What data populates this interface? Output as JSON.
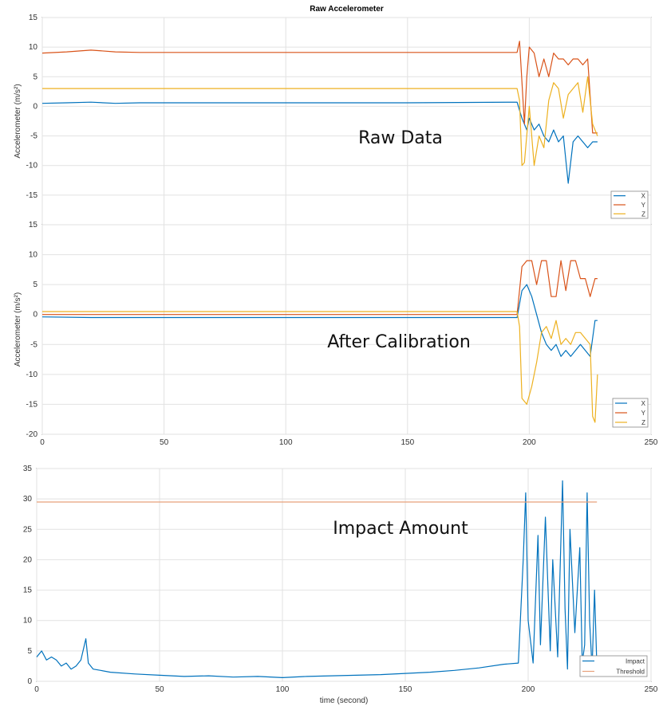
{
  "chart_data": [
    {
      "type": "line",
      "title": "Raw Accelerometer",
      "xlabel": "",
      "ylabel": "Accelerometer (m/s²)",
      "xlim": [
        0,
        250
      ],
      "ylim": [
        -20,
        15
      ],
      "yticks": [
        15,
        10,
        5,
        0,
        -5,
        -10,
        -15
      ],
      "xticks": [],
      "grid": true,
      "legend": "bottom-right",
      "annotation": "Raw Data",
      "series": [
        {
          "name": "X",
          "color": "#0072bd",
          "x": [
            0,
            10,
            20,
            30,
            40,
            60,
            100,
            150,
            195,
            197,
            199,
            200,
            202,
            204,
            206,
            208,
            210,
            212,
            214,
            216,
            218,
            220,
            222,
            224,
            226,
            228
          ],
          "y": [
            0.5,
            0.6,
            0.7,
            0.5,
            0.6,
            0.6,
            0.6,
            0.6,
            0.7,
            -2,
            -4,
            -2,
            -4,
            -3,
            -5,
            -6,
            -4,
            -6,
            -5,
            -13,
            -6,
            -5,
            -6,
            -7,
            -6,
            -6
          ]
        },
        {
          "name": "Y",
          "color": "#d95319",
          "x": [
            0,
            10,
            20,
            30,
            40,
            60,
            100,
            150,
            195,
            196,
            198,
            199,
            200,
            202,
            204,
            206,
            208,
            210,
            212,
            214,
            216,
            218,
            220,
            222,
            224,
            226,
            228
          ],
          "y": [
            9,
            9.2,
            9.5,
            9.2,
            9.1,
            9.1,
            9.1,
            9.1,
            9.1,
            11,
            -3,
            5,
            10,
            9,
            5,
            8,
            5,
            9,
            8,
            8,
            7,
            8,
            8,
            7,
            8,
            -4.5,
            -4.5
          ]
        },
        {
          "name": "Z",
          "color": "#edb120",
          "x": [
            0,
            20,
            60,
            100,
            150,
            195,
            196,
            197,
            198,
            200,
            202,
            204,
            206,
            208,
            210,
            212,
            214,
            216,
            218,
            220,
            222,
            224,
            226,
            228
          ],
          "y": [
            3,
            3,
            3,
            3,
            3,
            3,
            1,
            -10,
            -9.5,
            0,
            -10,
            -5,
            -7,
            1,
            4,
            3,
            -2,
            2,
            3,
            4,
            -1,
            5,
            -3,
            -5
          ]
        }
      ]
    },
    {
      "type": "line",
      "title": "",
      "xlabel": "",
      "ylabel": "Accelerometer (m/s²)",
      "xlim": [
        0,
        250
      ],
      "ylim": [
        -20,
        15
      ],
      "yticks": [
        15,
        10,
        5,
        0,
        -5,
        -10,
        -15,
        -20
      ],
      "xticks": [
        0,
        50,
        100,
        150,
        200,
        250
      ],
      "grid": true,
      "legend": "bottom-right",
      "annotation": "After Calibration",
      "series": [
        {
          "name": "X",
          "color": "#0072bd",
          "x": [
            0,
            20,
            60,
            100,
            150,
            195,
            197,
            199,
            201,
            203,
            205,
            207,
            209,
            211,
            213,
            215,
            217,
            219,
            221,
            223,
            225,
            227,
            228
          ],
          "y": [
            -0.4,
            -0.5,
            -0.5,
            -0.5,
            -0.5,
            -0.5,
            4,
            5,
            3,
            0,
            -3,
            -5,
            -6,
            -5,
            -7,
            -6,
            -7,
            -6,
            -5,
            -6,
            -7,
            -1,
            -1
          ]
        },
        {
          "name": "Y",
          "color": "#d95319",
          "x": [
            0,
            20,
            60,
            100,
            150,
            195,
            197,
            199,
            201,
            203,
            205,
            207,
            209,
            211,
            213,
            215,
            217,
            219,
            221,
            223,
            225,
            227,
            228
          ],
          "y": [
            0,
            0,
            0,
            0,
            0,
            0,
            8,
            9,
            9,
            5,
            9,
            9,
            3,
            3,
            9,
            4,
            9,
            9,
            6,
            6,
            3,
            6,
            6
          ]
        },
        {
          "name": "Z",
          "color": "#edb120",
          "x": [
            0,
            20,
            60,
            100,
            150,
            195,
            196,
            197,
            199,
            201,
            203,
            205,
            207,
            209,
            211,
            213,
            215,
            217,
            219,
            221,
            223,
            225,
            226,
            227,
            228
          ],
          "y": [
            0.5,
            0.5,
            0.5,
            0.5,
            0.5,
            0.5,
            -2,
            -14,
            -15,
            -12,
            -8,
            -3,
            -2,
            -4,
            -1,
            -5,
            -4,
            -5,
            -3,
            -3,
            -4,
            -5,
            -17,
            -18,
            -10
          ]
        }
      ]
    },
    {
      "type": "line",
      "title": "",
      "xlabel": "time (second)",
      "ylabel": "",
      "xlim": [
        0,
        250
      ],
      "ylim": [
        0,
        35
      ],
      "yticks": [
        0,
        5,
        10,
        15,
        20,
        25,
        30,
        35
      ],
      "xticks": [
        0,
        50,
        100,
        150,
        200,
        250
      ],
      "grid": true,
      "legend": "bottom-right",
      "annotation": "Impact Amount",
      "series": [
        {
          "name": "Impact",
          "color": "#0072bd",
          "x": [
            0,
            2,
            4,
            6,
            8,
            10,
            12,
            14,
            16,
            18,
            20,
            21,
            23,
            26,
            30,
            40,
            50,
            60,
            70,
            80,
            90,
            100,
            110,
            120,
            130,
            140,
            150,
            160,
            170,
            180,
            190,
            196,
            198,
            199,
            200,
            202,
            204,
            205,
            207,
            209,
            210,
            212,
            214,
            215,
            216,
            217,
            219,
            221,
            222,
            223,
            224,
            225,
            226,
            227,
            228
          ],
          "y": [
            4,
            5,
            3.5,
            4,
            3.5,
            2.5,
            3,
            2,
            2.5,
            3.5,
            7,
            3,
            2,
            1.8,
            1.5,
            1.2,
            1,
            0.8,
            0.9,
            0.7,
            0.8,
            0.6,
            0.8,
            0.9,
            1,
            1.1,
            1.3,
            1.5,
            1.8,
            2.2,
            2.8,
            3,
            20,
            31,
            10,
            3,
            24,
            6,
            27,
            5,
            20,
            4,
            33,
            12,
            2,
            25,
            8,
            22,
            3,
            6,
            31,
            10,
            2,
            15,
            2
          ]
        },
        {
          "name": "Threshold",
          "color": "#e8a07a",
          "x": [
            0,
            228
          ],
          "y": [
            29.5,
            29.5
          ]
        }
      ]
    }
  ]
}
